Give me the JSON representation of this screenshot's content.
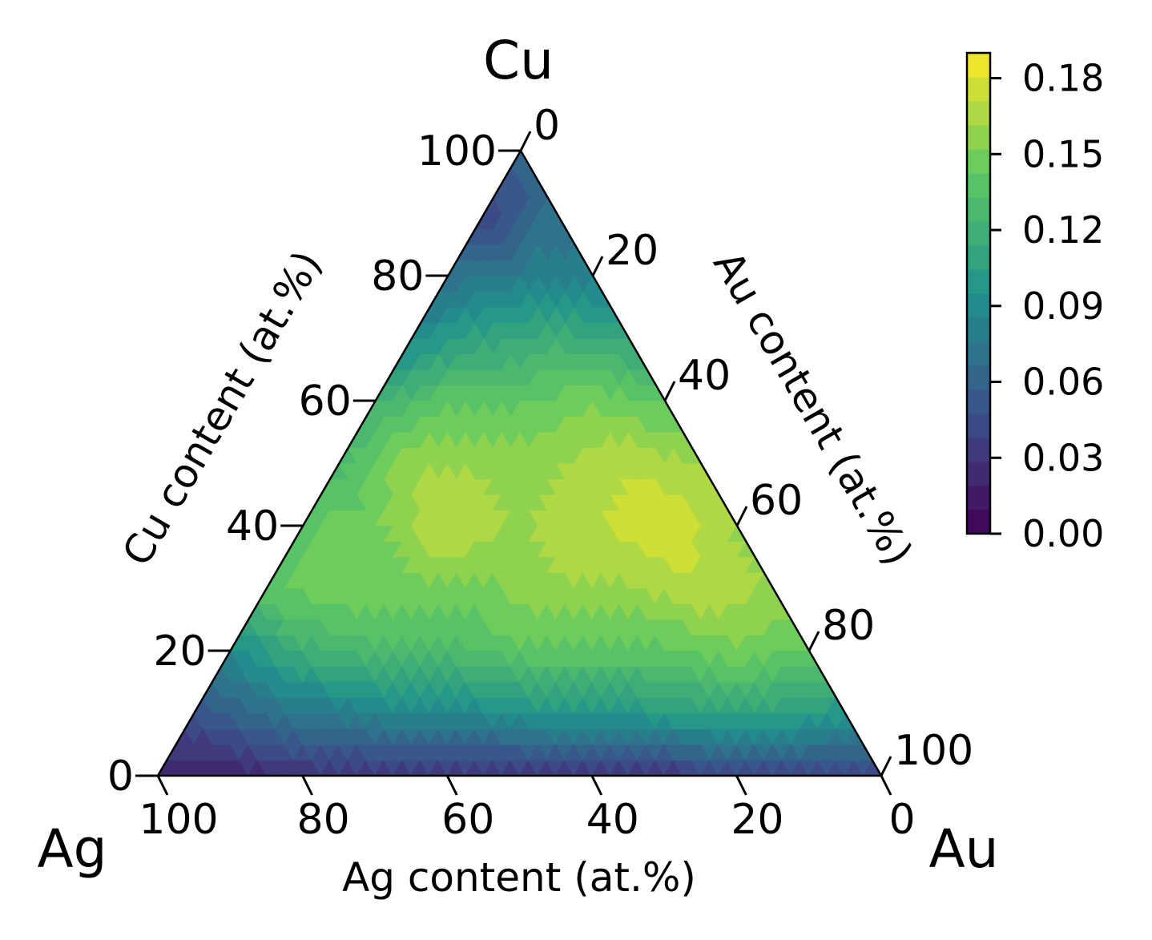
{
  "chart_data": {
    "type": "ternary-contour",
    "corner_labels": {
      "top": "Cu",
      "left": "Ag",
      "right": "Au"
    },
    "axis_labels": {
      "left": "Cu content (at.%)",
      "right": "Au content (at.%)",
      "bottom": "Ag content (at.%)"
    },
    "ticks": {
      "cu": [
        "0",
        "20",
        "40",
        "60",
        "80",
        "100"
      ],
      "au": [
        "0",
        "20",
        "40",
        "60",
        "80",
        "100"
      ],
      "ag": [
        "100",
        "80",
        "60",
        "40",
        "20",
        "0"
      ]
    },
    "colorbar": {
      "range": [
        0,
        0.19
      ],
      "tick_labels": [
        "0.00",
        "0.03",
        "0.06",
        "0.09",
        "0.12",
        "0.15",
        "0.18"
      ],
      "levels": 20,
      "colormap": [
        "#440154",
        "#3b528b",
        "#21918c",
        "#5ec962",
        "#fde725"
      ]
    },
    "grid_spacing_at_pct": 10,
    "samples": [
      {
        "cu": 100,
        "au": 0,
        "ag": 0,
        "value": 0.06
      },
      {
        "cu": 90,
        "au": 0,
        "ag": 10,
        "value": 0.04
      },
      {
        "cu": 90,
        "au": 10,
        "ag": 0,
        "value": 0.07
      },
      {
        "cu": 80,
        "au": 0,
        "ag": 20,
        "value": 0.07
      },
      {
        "cu": 80,
        "au": 10,
        "ag": 10,
        "value": 0.08
      },
      {
        "cu": 80,
        "au": 20,
        "ag": 0,
        "value": 0.08
      },
      {
        "cu": 70,
        "au": 0,
        "ag": 30,
        "value": 0.09
      },
      {
        "cu": 70,
        "au": 10,
        "ag": 20,
        "value": 0.11
      },
      {
        "cu": 70,
        "au": 20,
        "ag": 10,
        "value": 0.12
      },
      {
        "cu": 70,
        "au": 30,
        "ag": 0,
        "value": 0.11
      },
      {
        "cu": 60,
        "au": 0,
        "ag": 40,
        "value": 0.12
      },
      {
        "cu": 60,
        "au": 10,
        "ag": 30,
        "value": 0.14
      },
      {
        "cu": 60,
        "au": 20,
        "ag": 20,
        "value": 0.14
      },
      {
        "cu": 60,
        "au": 30,
        "ag": 10,
        "value": 0.15
      },
      {
        "cu": 60,
        "au": 40,
        "ag": 0,
        "value": 0.14
      },
      {
        "cu": 50,
        "au": 0,
        "ag": 50,
        "value": 0.13
      },
      {
        "cu": 50,
        "au": 10,
        "ag": 40,
        "value": 0.16
      },
      {
        "cu": 50,
        "au": 20,
        "ag": 30,
        "value": 0.16
      },
      {
        "cu": 50,
        "au": 30,
        "ag": 20,
        "value": 0.16
      },
      {
        "cu": 50,
        "au": 40,
        "ag": 10,
        "value": 0.17
      },
      {
        "cu": 50,
        "au": 50,
        "ag": 0,
        "value": 0.16
      },
      {
        "cu": 40,
        "au": 0,
        "ag": 60,
        "value": 0.14
      },
      {
        "cu": 40,
        "au": 10,
        "ag": 50,
        "value": 0.15
      },
      {
        "cu": 40,
        "au": 20,
        "ag": 40,
        "value": 0.17
      },
      {
        "cu": 40,
        "au": 30,
        "ag": 30,
        "value": 0.16
      },
      {
        "cu": 40,
        "au": 40,
        "ag": 20,
        "value": 0.17
      },
      {
        "cu": 40,
        "au": 50,
        "ag": 10,
        "value": 0.18
      },
      {
        "cu": 40,
        "au": 60,
        "ag": 0,
        "value": 0.16
      },
      {
        "cu": 30,
        "au": 0,
        "ag": 70,
        "value": 0.14
      },
      {
        "cu": 30,
        "au": 10,
        "ag": 60,
        "value": 0.15
      },
      {
        "cu": 30,
        "au": 20,
        "ag": 50,
        "value": 0.15
      },
      {
        "cu": 30,
        "au": 30,
        "ag": 40,
        "value": 0.15
      },
      {
        "cu": 30,
        "au": 40,
        "ag": 30,
        "value": 0.16
      },
      {
        "cu": 30,
        "au": 50,
        "ag": 20,
        "value": 0.16
      },
      {
        "cu": 30,
        "au": 60,
        "ag": 10,
        "value": 0.17
      },
      {
        "cu": 30,
        "au": 70,
        "ag": 0,
        "value": 0.16
      },
      {
        "cu": 20,
        "au": 0,
        "ag": 80,
        "value": 0.09
      },
      {
        "cu": 20,
        "au": 10,
        "ag": 70,
        "value": 0.12
      },
      {
        "cu": 20,
        "au": 20,
        "ag": 60,
        "value": 0.13
      },
      {
        "cu": 20,
        "au": 30,
        "ag": 50,
        "value": 0.13
      },
      {
        "cu": 20,
        "au": 40,
        "ag": 40,
        "value": 0.14
      },
      {
        "cu": 20,
        "au": 50,
        "ag": 30,
        "value": 0.14
      },
      {
        "cu": 20,
        "au": 60,
        "ag": 20,
        "value": 0.14
      },
      {
        "cu": 20,
        "au": 70,
        "ag": 10,
        "value": 0.15
      },
      {
        "cu": 20,
        "au": 80,
        "ag": 0,
        "value": 0.14
      },
      {
        "cu": 10,
        "au": 0,
        "ag": 90,
        "value": 0.05
      },
      {
        "cu": 10,
        "au": 10,
        "ag": 80,
        "value": 0.07
      },
      {
        "cu": 10,
        "au": 20,
        "ag": 70,
        "value": 0.08
      },
      {
        "cu": 10,
        "au": 30,
        "ag": 60,
        "value": 0.09
      },
      {
        "cu": 10,
        "au": 40,
        "ag": 50,
        "value": 0.09
      },
      {
        "cu": 10,
        "au": 50,
        "ag": 40,
        "value": 0.1
      },
      {
        "cu": 10,
        "au": 60,
        "ag": 30,
        "value": 0.1
      },
      {
        "cu": 10,
        "au": 70,
        "ag": 20,
        "value": 0.11
      },
      {
        "cu": 10,
        "au": 80,
        "ag": 10,
        "value": 0.11
      },
      {
        "cu": 10,
        "au": 90,
        "ag": 0,
        "value": 0.1
      },
      {
        "cu": 0,
        "au": 0,
        "ag": 100,
        "value": 0.02
      },
      {
        "cu": 0,
        "au": 10,
        "ag": 90,
        "value": 0.02
      },
      {
        "cu": 0,
        "au": 20,
        "ag": 80,
        "value": 0.03
      },
      {
        "cu": 0,
        "au": 30,
        "ag": 70,
        "value": 0.03
      },
      {
        "cu": 0,
        "au": 40,
        "ag": 60,
        "value": 0.03
      },
      {
        "cu": 0,
        "au": 50,
        "ag": 50,
        "value": 0.03
      },
      {
        "cu": 0,
        "au": 60,
        "ag": 40,
        "value": 0.03
      },
      {
        "cu": 0,
        "au": 70,
        "ag": 30,
        "value": 0.03
      },
      {
        "cu": 0,
        "au": 80,
        "ag": 20,
        "value": 0.04
      },
      {
        "cu": 0,
        "au": 90,
        "ag": 10,
        "value": 0.04
      },
      {
        "cu": 0,
        "au": 100,
        "ag": 0,
        "value": 0.04
      }
    ]
  }
}
